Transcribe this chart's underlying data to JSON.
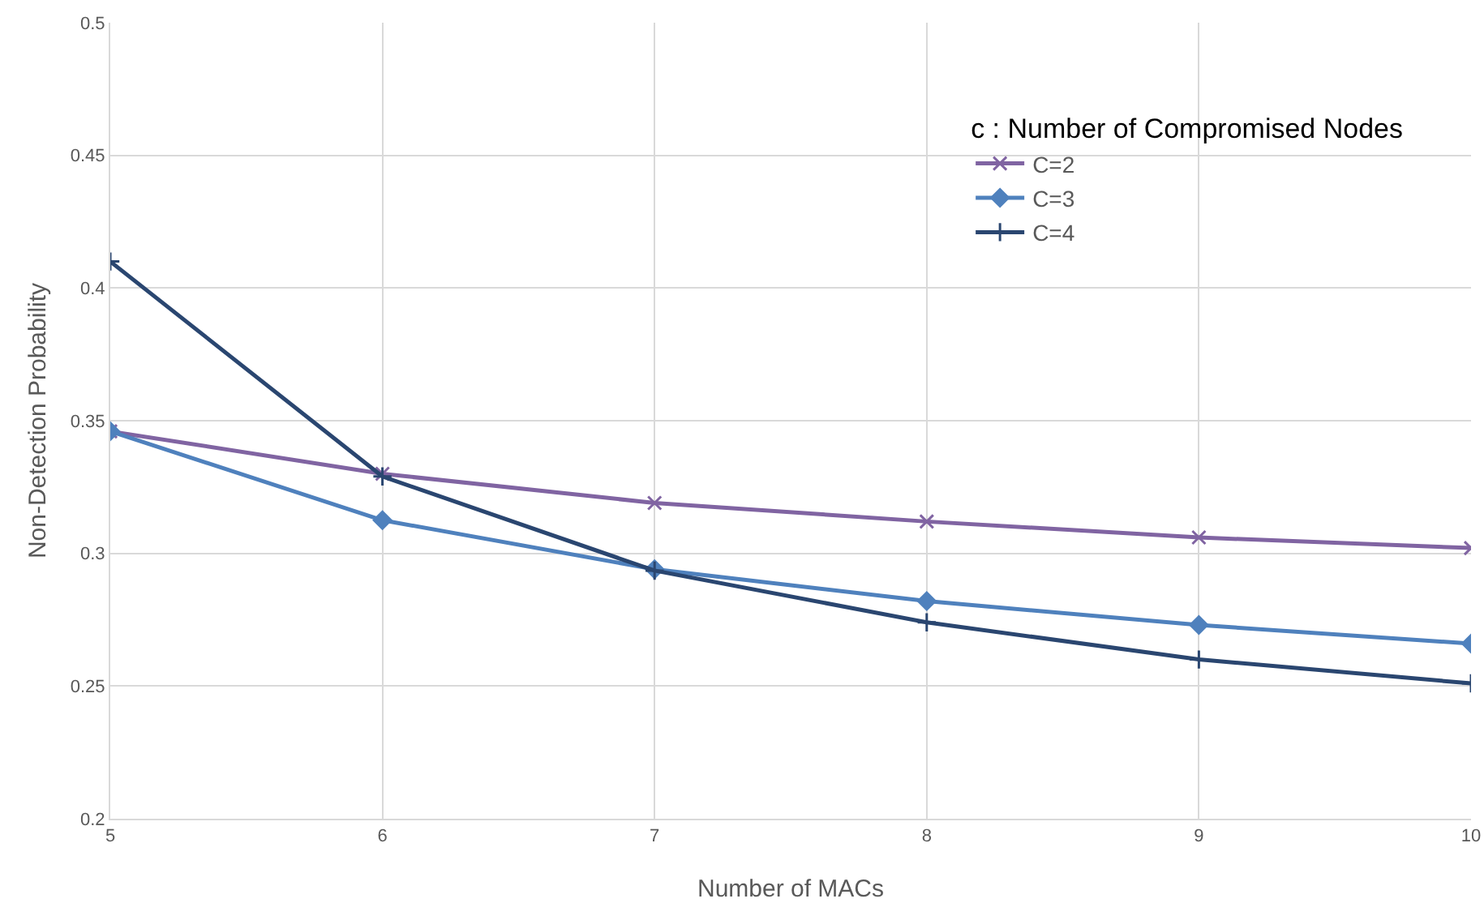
{
  "chart_data": {
    "type": "line",
    "xlabel": "Number of MACs",
    "ylabel": "Non-Detection Probability",
    "legend_title": "c : Number of Compromised Nodes",
    "x": [
      5,
      6,
      7,
      8,
      9,
      10
    ],
    "xlim": [
      5,
      10
    ],
    "xticks": [
      5,
      6,
      7,
      8,
      9,
      10
    ],
    "ylim": [
      0.2,
      0.5
    ],
    "yticks": [
      0.2,
      0.25,
      0.3,
      0.35,
      0.4,
      0.45,
      0.5
    ],
    "grid": true,
    "legend": "top right",
    "series": [
      {
        "name": "C=2",
        "color": "#8064a2",
        "marker": "cross",
        "values": [
          0.346,
          0.33,
          0.319,
          0.312,
          0.306,
          0.302
        ]
      },
      {
        "name": "C=3",
        "color": "#4f81bd",
        "marker": "diamond",
        "values": [
          0.346,
          0.3125,
          0.294,
          0.282,
          0.273,
          0.266
        ]
      },
      {
        "name": "C=4",
        "color": "#2a4670",
        "marker": "plus",
        "values": [
          0.41,
          0.329,
          0.2935,
          0.274,
          0.26,
          0.251
        ]
      }
    ]
  }
}
